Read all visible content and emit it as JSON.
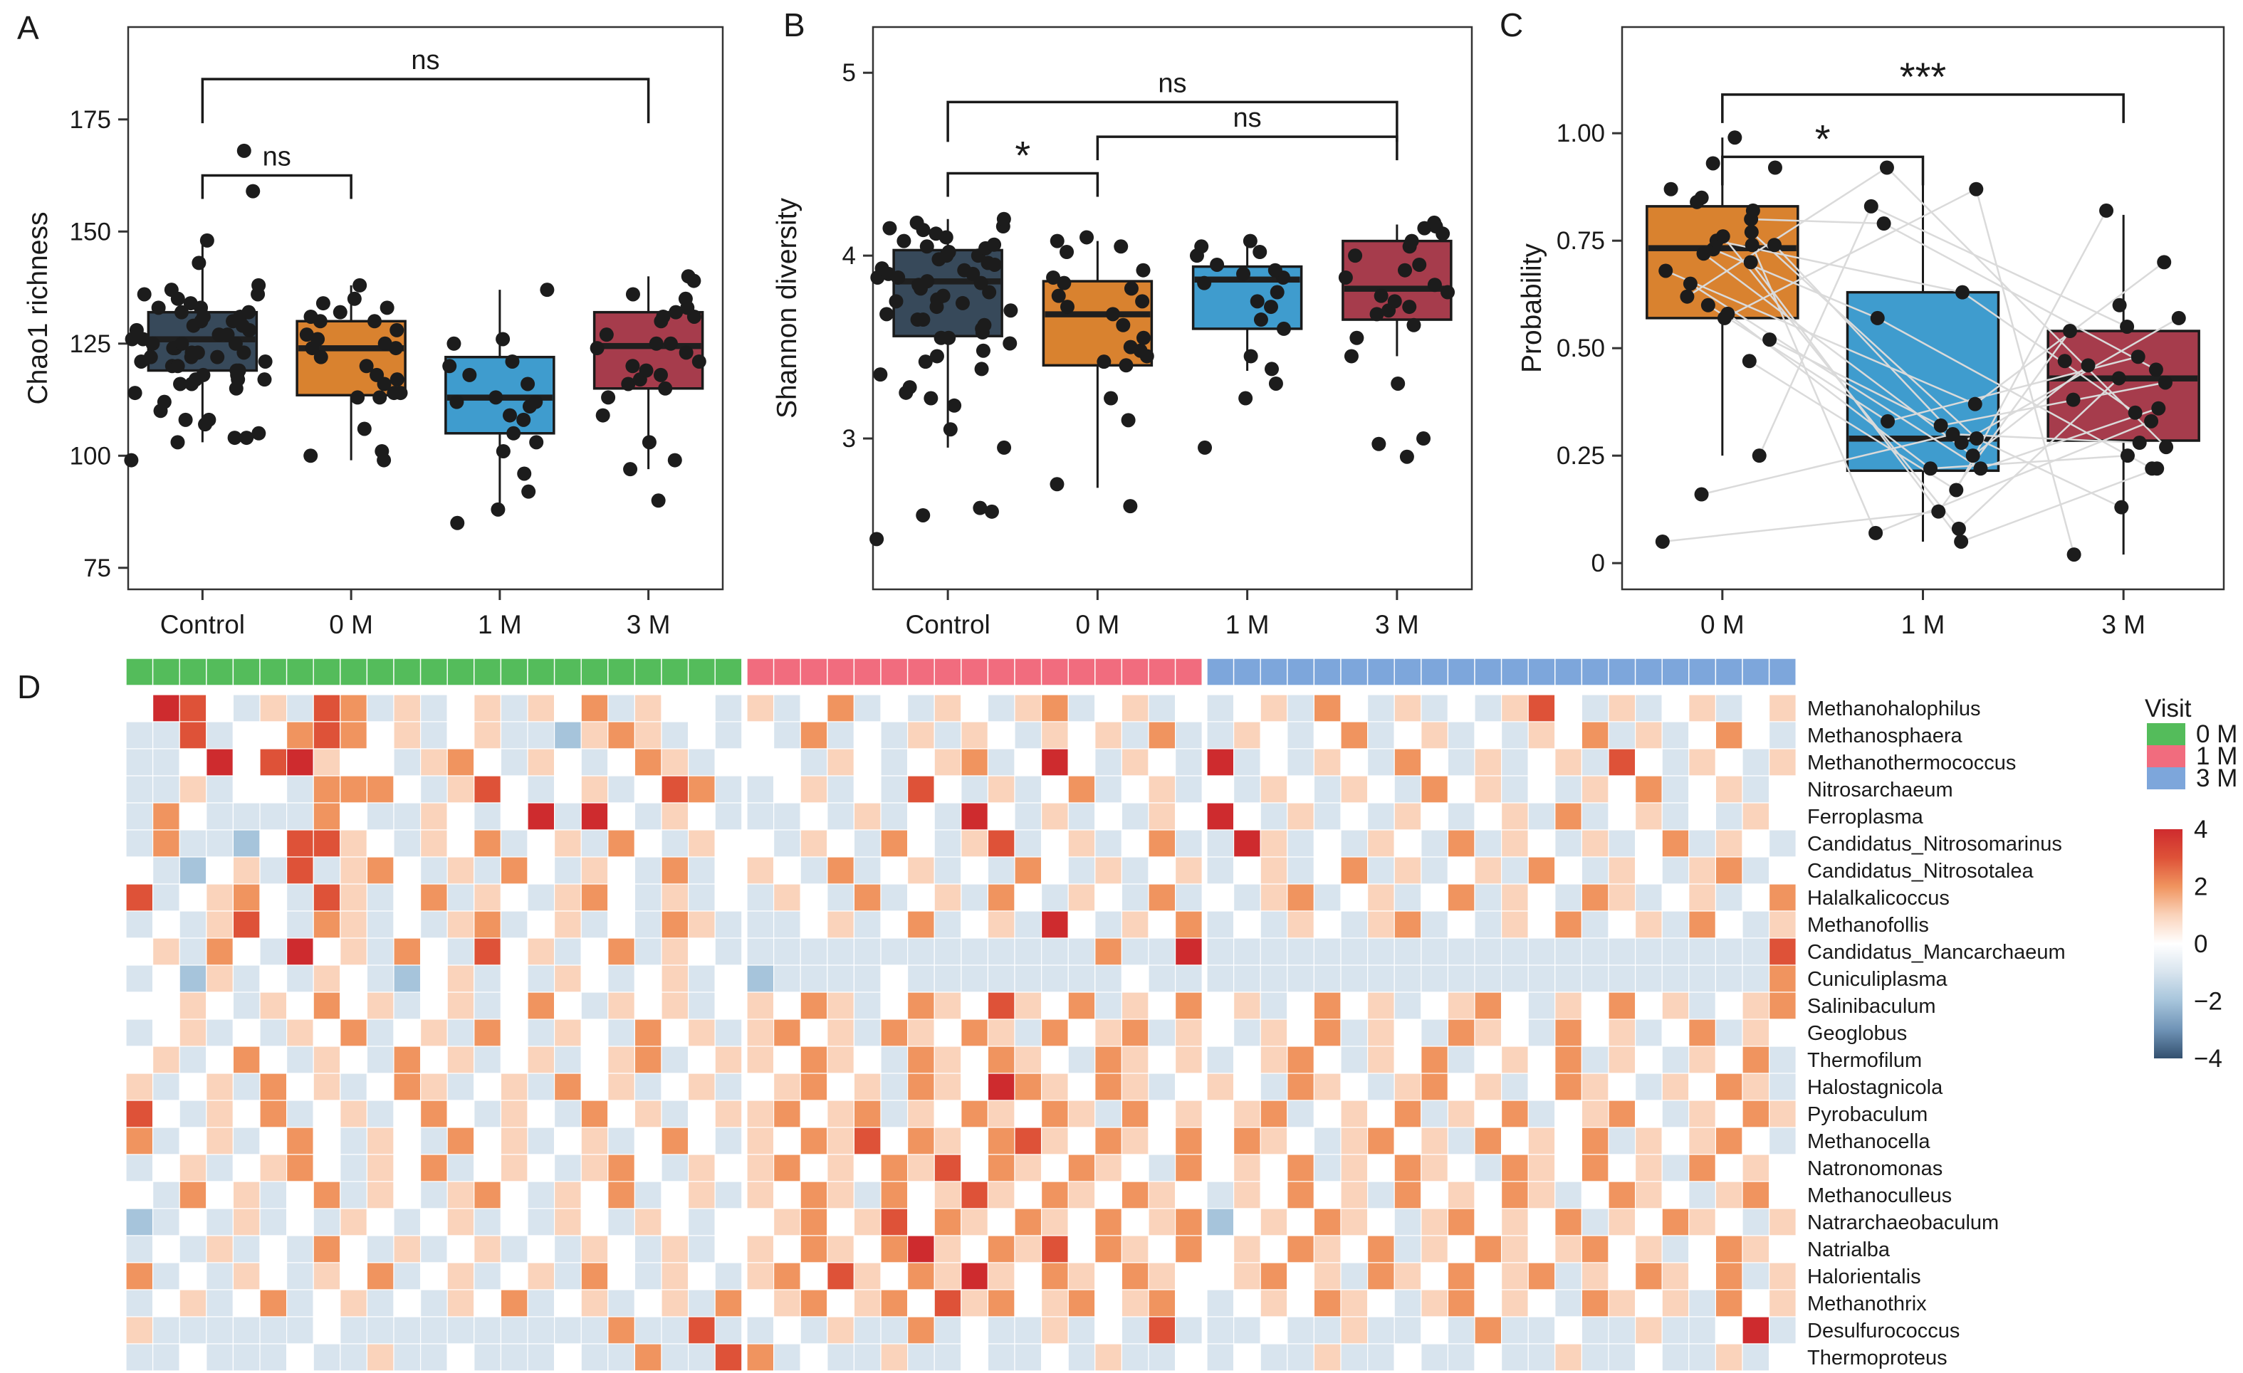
{
  "figure": {
    "panel_letters": [
      "A",
      "B",
      "C",
      "D"
    ]
  },
  "chart_data": [
    {
      "panel": "A",
      "type": "boxplot-jitter",
      "ylabel": "Chao1 richness",
      "categories": [
        "Control",
        "0 M",
        "1 M",
        "3 M"
      ],
      "colors": [
        "#37495A",
        "#D9822F",
        "#3F9CCE",
        "#A63C4C"
      ],
      "axis": {
        "min": 70.2,
        "max": 195.6
      },
      "yticks": {
        "values": [
          175,
          150,
          125,
          100,
          75
        ],
        "labels": [
          "175",
          "150",
          "125",
          "100",
          "75"
        ]
      },
      "boxes": [
        {
          "low": 103,
          "q1": 119,
          "med": 126,
          "q3": 132,
          "high": 148
        },
        {
          "low": 99,
          "q1": 113.5,
          "med": 124,
          "q3": 130,
          "high": 138
        },
        {
          "low": 88,
          "q1": 105,
          "med": 113,
          "q3": 122,
          "high": 137
        },
        {
          "low": 97,
          "q1": 115,
          "med": 124.5,
          "q3": 132,
          "high": 140
        }
      ],
      "points": [
        [
          99,
          103,
          104,
          104,
          105,
          107,
          108,
          108,
          110,
          112,
          114,
          115,
          116,
          116,
          117,
          117,
          117,
          118,
          118,
          119,
          119,
          120,
          120,
          121,
          121,
          122,
          122,
          122,
          123,
          123,
          123,
          124,
          124,
          125,
          125,
          125,
          126,
          126,
          127,
          127,
          128,
          128,
          129,
          129,
          130,
          130,
          131,
          131,
          132,
          132,
          133,
          133,
          134,
          135,
          136,
          136,
          137,
          138,
          143,
          148,
          159,
          168
        ],
        [
          99,
          100,
          101,
          106,
          113,
          113,
          114,
          114,
          116,
          117,
          118,
          120,
          122,
          124,
          124,
          125,
          126,
          127,
          128,
          130,
          130,
          131,
          132,
          133,
          134,
          135,
          138
        ],
        [
          85,
          88,
          92,
          96,
          101,
          103,
          105,
          108,
          109,
          111,
          112,
          112,
          113,
          116,
          118,
          120,
          121,
          125,
          126,
          137
        ],
        [
          90,
          97,
          99,
          103,
          109,
          113,
          115,
          116,
          117,
          118,
          119,
          120,
          121,
          123,
          124,
          125,
          125,
          127,
          130,
          131,
          131,
          132,
          133,
          135,
          136,
          139,
          140
        ]
      ],
      "brackets": [
        {
          "a": 0,
          "b": 1,
          "v": 162.5,
          "label": "ns",
          "drop": 33
        },
        {
          "a": 0,
          "b": 3,
          "v": 184,
          "label": "ns",
          "drop": 62
        }
      ]
    },
    {
      "panel": "B",
      "type": "boxplot-jitter",
      "ylabel": "Shannon  diversity",
      "categories": [
        "Control",
        "0 M",
        "1 M",
        "3 M"
      ],
      "colors": [
        "#37495A",
        "#D9822F",
        "#3F9CCE",
        "#A63C4C"
      ],
      "axis": {
        "min": 2.175,
        "max": 5.25
      },
      "yticks": {
        "values": [
          5,
          4,
          3
        ],
        "labels": [
          "5",
          "4",
          "3"
        ]
      },
      "boxes": [
        {
          "low": 2.95,
          "q1": 3.56,
          "med": 3.86,
          "q3": 4.03,
          "high": 4.2
        },
        {
          "low": 2.73,
          "q1": 3.4,
          "med": 3.68,
          "q3": 3.86,
          "high": 4.08
        },
        {
          "low": 3.37,
          "q1": 3.6,
          "med": 3.87,
          "q3": 3.94,
          "high": 4.06
        },
        {
          "low": 3.45,
          "q1": 3.65,
          "med": 3.82,
          "q3": 4.08,
          "high": 4.17
        }
      ],
      "points": [
        [
          2.45,
          2.58,
          2.6,
          2.62,
          2.95,
          3.05,
          3.18,
          3.22,
          3.25,
          3.28,
          3.35,
          3.38,
          3.42,
          3.45,
          3.48,
          3.52,
          3.55,
          3.55,
          3.58,
          3.6,
          3.62,
          3.65,
          3.65,
          3.68,
          3.7,
          3.72,
          3.74,
          3.75,
          3.76,
          3.78,
          3.8,
          3.82,
          3.84,
          3.85,
          3.86,
          3.88,
          3.88,
          3.9,
          3.9,
          3.92,
          3.93,
          3.95,
          3.96,
          3.98,
          4.0,
          4.0,
          4.02,
          4.04,
          4.05,
          4.06,
          4.08,
          4.1,
          4.12,
          4.14,
          4.15,
          4.16,
          4.18,
          4.2
        ],
        [
          2.63,
          2.75,
          3.1,
          3.22,
          3.4,
          3.42,
          3.45,
          3.48,
          3.5,
          3.55,
          3.62,
          3.68,
          3.72,
          3.75,
          3.78,
          3.82,
          3.85,
          3.88,
          3.92,
          4.02,
          4.05,
          4.08,
          4.1
        ],
        [
          2.95,
          3.22,
          3.3,
          3.38,
          3.45,
          3.6,
          3.65,
          3.72,
          3.75,
          3.8,
          3.85,
          3.88,
          3.9,
          3.92,
          3.95,
          4.0,
          4.02,
          4.05,
          4.08
        ],
        [
          2.9,
          2.97,
          3.0,
          3.3,
          3.45,
          3.55,
          3.62,
          3.68,
          3.7,
          3.72,
          3.75,
          3.78,
          3.8,
          3.84,
          3.88,
          3.92,
          3.95,
          4.0,
          4.05,
          4.08,
          4.12,
          4.15,
          4.16,
          4.18
        ]
      ],
      "brackets": [
        {
          "a": 0,
          "b": 1,
          "v": 4.45,
          "label": "*",
          "drop": 33
        },
        {
          "a": 1,
          "b": 3,
          "v": 4.65,
          "label": "ns",
          "drop": 33
        },
        {
          "a": 0,
          "b": 3,
          "v": 4.84,
          "label": "ns",
          "drop": 56
        }
      ]
    },
    {
      "panel": "C",
      "type": "boxplot-jitter-paired",
      "ylabel": "Probability",
      "categories": [
        "0 M",
        "1 M",
        "3 M"
      ],
      "colors": [
        "#D9822F",
        "#3F9CCE",
        "#A63C4C"
      ],
      "axis": {
        "min": -0.061,
        "max": 1.247
      },
      "yticks": {
        "values": [
          1.0,
          0.75,
          0.5,
          0.25,
          0
        ],
        "labels": [
          "1.00",
          "0.75",
          "0.50",
          "0.25",
          "0"
        ]
      },
      "boxes": [
        {
          "low": 0.25,
          "q1": 0.57,
          "med": 0.733,
          "q3": 0.83,
          "high": 0.99
        },
        {
          "low": 0.05,
          "q1": 0.215,
          "med": 0.29,
          "q3": 0.63,
          "high": 0.92
        },
        {
          "low": 0.02,
          "q1": 0.285,
          "med": 0.43,
          "q3": 0.54,
          "high": 0.81
        }
      ],
      "points": [
        [
          0.05,
          0.16,
          0.25,
          0.47,
          0.52,
          0.57,
          0.58,
          0.6,
          0.62,
          0.65,
          0.68,
          0.7,
          0.72,
          0.73,
          0.74,
          0.74,
          0.75,
          0.76,
          0.77,
          0.8,
          0.82,
          0.84,
          0.85,
          0.87,
          0.92,
          0.93,
          0.99
        ],
        [
          0.05,
          0.07,
          0.08,
          0.12,
          0.17,
          0.22,
          0.22,
          0.25,
          0.28,
          0.29,
          0.3,
          0.32,
          0.33,
          0.37,
          0.57,
          0.63,
          0.79,
          0.83,
          0.87,
          0.92
        ],
        [
          0.02,
          0.13,
          0.22,
          0.22,
          0.25,
          0.27,
          0.28,
          0.33,
          0.35,
          0.36,
          0.38,
          0.42,
          0.43,
          0.45,
          0.46,
          0.47,
          0.48,
          0.54,
          0.55,
          0.57,
          0.6,
          0.7,
          0.82
        ]
      ],
      "pair_line_color": "#DADADA",
      "brackets": [
        {
          "a": 0,
          "b": 1,
          "v": 0.945,
          "label": "*",
          "drop": 40
        },
        {
          "a": 0,
          "b": 2,
          "v": 1.09,
          "label": "***",
          "drop": 40
        }
      ]
    },
    {
      "panel": "D",
      "type": "heatmap",
      "groups": [
        {
          "label": "0 M",
          "color": "#54BC5B",
          "n": 23
        },
        {
          "label": "1 M",
          "color": "#F16C7E",
          "n": 17
        },
        {
          "label": "3 M",
          "color": "#7DA6DB",
          "n": 22
        }
      ],
      "legend": {
        "title": "Visit"
      },
      "colorbar": {
        "tick_labels": [
          "4",
          "2",
          "0",
          "−2",
          "−4"
        ],
        "tick_values": [
          4,
          2,
          0,
          -2,
          -4
        ],
        "range": [
          -4,
          4
        ]
      },
      "palette_neg4_to_pos4": [
        "#33506F",
        "#6F93B6",
        "#A6C4DB",
        "#D8E4EE",
        "#FFFFFF",
        "#FAD3BB",
        "#F0945F",
        "#DE5238",
        "#CE2B2E"
      ],
      "value_encoding": "each cell char is value+4, so digits 0..8 map to z-scores -4..+4",
      "rows": [
        {
          "name": "Methanohalophilus",
          "g": "48743537635345354635443",
          "p": "53463435435634534",
          "b": "3453643534357435345345"
        },
        {
          "name": "Methanosphaera",
          "g": "33734467645345332565343",
          "p": "43634353543545363",
          "b": "3543463453435463534643"
        },
        {
          "name": "Methanothermococcus",
          "g": "33484785443564354346534",
          "p": "44354345634843543",
          "b": "8343543643534537435435"
        },
        {
          "name": "Nitrosarchaeum",
          "g": "33534436664357434534763",
          "p": "34534374353463453",
          "b": "4354354364534354634534"
        },
        {
          "name": "Ferroplasma",
          "g": "36433336433543483843543",
          "p": "33435343843534354",
          "b": "8435343543453634534354"
        },
        {
          "name": "Candidatus_Nitrosomarinus",
          "g": "36332477543546345364354",
          "p": "43543643573453463",
          "b": "3853435436354353463543"
        },
        {
          "name": "Candidatus_Nitrosotalea",
          "g": "43245373564353643543634",
          "p": "54363453436435345",
          "b": "3453463534536435435634"
        },
        {
          "name": "Halalkalicoccus",
          "g": "73456437534635435643534",
          "p": "35436345364354363",
          "b": "4356345346354365345346"
        },
        {
          "name": "Methanofollis",
          "g": "34357436534356345343653",
          "p": "33453463453843546",
          "b": "3435435634354634536435"
        },
        {
          "name": "Candidatus_Mancarchaeum",
          "g": "45364384536437453463543",
          "p": "33333333333336338",
          "b": "3333333333333333333337"
        },
        {
          "name": "Cuniculiplasma",
          "g": "34253435432453435434534",
          "p": "23333433333333433",
          "b": "3333333333333333333336"
        },
        {
          "name": "Salinibaculum",
          "g": "44543546453453464354534",
          "p": "54653465475463546",
          "b": "4534645345643546453456"
        },
        {
          "name": "Geoglobus",
          "g": "34534354634536435436453",
          "p": "56453654653645635",
          "b": "4354635436543645346354"
        },
        {
          "name": "Thermofilum",
          "g": "45346435436453453456345",
          "p": "54654365465436545",
          "b": "3456435463454635435463"
        },
        {
          "name": "Halostagnicola",
          "g": "53453645346534536453453",
          "p": "45645365486546534",
          "b": "5436543564534654354653"
        },
        {
          "name": "Pyrobaculum",
          "g": "74354634534643543645345",
          "p": "56456354654653645",
          "b": "4563454635463456435465"
        },
        {
          "name": "Methanocella",
          "g": "63453464354364534534643",
          "p": "54657465467546546",
          "b": "4654356453645463545643"
        },
        {
          "name": "Natronomonas",
          "g": "34534564354634543564354",
          "p": "56454657465465436",
          "b": "4546354654365464536454"
        },
        {
          "name": "Methanoculleus",
          "g": "43645346354356435463453",
          "p": "54653645754654654",
          "b": "3546453645465346543564"
        },
        {
          "name": "Natrarchaeobaculum",
          "g": "23435343543453435435434",
          "p": "45645746546546456",
          "b": "2454654356454635465435"
        },
        {
          "name": "Natrialba",
          "g": "34353436435345343543534",
          "p": "54654685465746546",
          "b": "4546546354654564534654"
        },
        {
          "name": "Halorientalis",
          "g": "63435435463453453643543",
          "p": "56475465854654654",
          "b": "4564536546456354654635"
        },
        {
          "name": "Methanothrix",
          "g": "34534634534354634534536",
          "p": "45645647564564564",
          "b": "3454654356454365453645"
        },
        {
          "name": "Desulfurococcus",
          "g": "53333334333333333363373",
          "p": "34353363433534373",
          "b": "3343353343633433533483"
        },
        {
          "name": "Thermoproteus",
          "g": "33433343353343334336337",
          "p": "63433533433435334",
          "b": "3433533433433533433534"
        }
      ]
    }
  ]
}
